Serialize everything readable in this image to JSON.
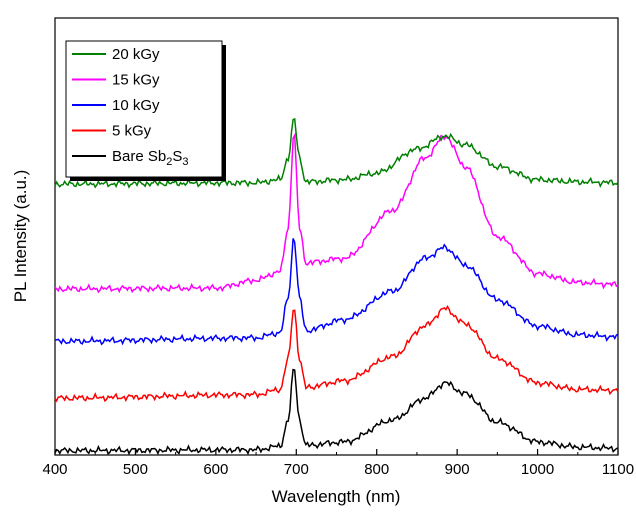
{
  "chart_data": {
    "type": "line",
    "title": "",
    "xlabel": "Wavelength (nm)",
    "ylabel": "PL Intensity (a.u.)",
    "xlim": [
      400,
      1100
    ],
    "ylim": [
      0,
      100
    ],
    "x_ticks": [
      400,
      500,
      600,
      700,
      800,
      900,
      1000,
      1100
    ],
    "y_ticks_shown": false,
    "grid": false,
    "legend_placement": "top-left",
    "series": [
      {
        "name": "Bare Sb2S3",
        "legend_parts": [
          "Bare Sb",
          "2",
          "S",
          "3"
        ],
        "color": "#000000",
        "points": [
          [
            400,
            1.0
          ],
          [
            650,
            1.2
          ],
          [
            680,
            2.0
          ],
          [
            690,
            8.0
          ],
          [
            697,
            20.0
          ],
          [
            704,
            8.0
          ],
          [
            712,
            2.2
          ],
          [
            760,
            3.0
          ],
          [
            820,
            8.0
          ],
          [
            860,
            13.0
          ],
          [
            885,
            16.5
          ],
          [
            910,
            14.0
          ],
          [
            950,
            7.5
          ],
          [
            1000,
            3.0
          ],
          [
            1050,
            1.8
          ],
          [
            1100,
            1.5
          ]
        ]
      },
      {
        "name": "5 kGy",
        "color": "#ff0000",
        "points": [
          [
            400,
            13.0
          ],
          [
            650,
            13.8
          ],
          [
            680,
            15.0
          ],
          [
            690,
            22.0
          ],
          [
            697,
            34.0
          ],
          [
            704,
            22.0
          ],
          [
            712,
            15.5
          ],
          [
            760,
            17.0
          ],
          [
            820,
            22.5
          ],
          [
            860,
            29.5
          ],
          [
            885,
            33.5
          ],
          [
            910,
            30.0
          ],
          [
            950,
            22.0
          ],
          [
            1000,
            16.5
          ],
          [
            1050,
            15.0
          ],
          [
            1100,
            14.8
          ]
        ]
      },
      {
        "name": "10 kGy",
        "color": "#0000ff",
        "points": [
          [
            400,
            26.0
          ],
          [
            650,
            26.8
          ],
          [
            680,
            28.0
          ],
          [
            690,
            36.0
          ],
          [
            697,
            50.0
          ],
          [
            704,
            36.0
          ],
          [
            712,
            28.5
          ],
          [
            760,
            31.0
          ],
          [
            820,
            37.5
          ],
          [
            860,
            45.0
          ],
          [
            885,
            47.5
          ],
          [
            910,
            43.5
          ],
          [
            950,
            35.5
          ],
          [
            1000,
            29.5
          ],
          [
            1050,
            27.5
          ],
          [
            1100,
            27.0
          ]
        ]
      },
      {
        "name": "15 kGy",
        "color": "#ff00ff",
        "points": [
          [
            400,
            38.0
          ],
          [
            600,
            38.2
          ],
          [
            650,
            40.0
          ],
          [
            680,
            42.0
          ],
          [
            690,
            52.0
          ],
          [
            697,
            74.0
          ],
          [
            704,
            52.0
          ],
          [
            712,
            44.0
          ],
          [
            760,
            45.0
          ],
          [
            820,
            56.0
          ],
          [
            860,
            68.0
          ],
          [
            885,
            73.0
          ],
          [
            910,
            66.0
          ],
          [
            950,
            50.0
          ],
          [
            1000,
            41.5
          ],
          [
            1050,
            39.5
          ],
          [
            1100,
            39.0
          ]
        ]
      },
      {
        "name": "20 kGy",
        "color": "#008000",
        "points": [
          [
            400,
            62.0
          ],
          [
            650,
            62.3
          ],
          [
            680,
            63.0
          ],
          [
            690,
            68.0
          ],
          [
            697,
            77.0
          ],
          [
            704,
            68.0
          ],
          [
            712,
            62.5
          ],
          [
            760,
            63.0
          ],
          [
            800,
            64.5
          ],
          [
            850,
            70.0
          ],
          [
            885,
            73.0
          ],
          [
            910,
            71.0
          ],
          [
            950,
            66.0
          ],
          [
            1000,
            63.0
          ],
          [
            1050,
            62.5
          ],
          [
            1100,
            62.3
          ]
        ]
      }
    ],
    "legend_order": [
      "20 kGy",
      "15 kGy",
      "10 kGy",
      "5 kGy",
      "Bare Sb2S3"
    ]
  }
}
